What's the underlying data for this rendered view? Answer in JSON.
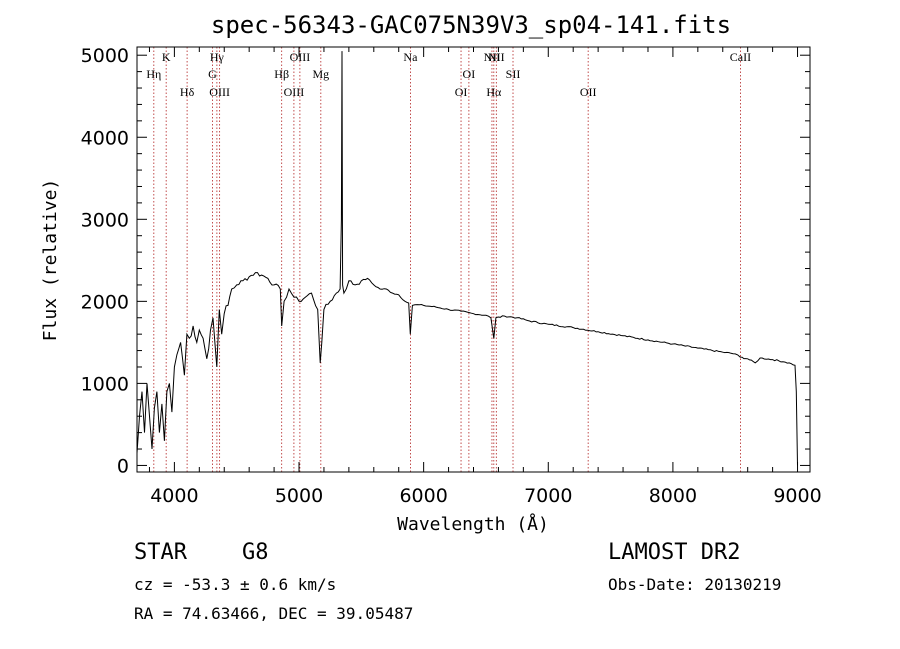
{
  "chart_data": {
    "type": "line",
    "title": "spec-56343-GAC075N39V3_sp04-141.fits",
    "xlabel": "Wavelength (Å)",
    "ylabel": "Flux (relative)",
    "xlim": [
      3700,
      9100
    ],
    "ylim": [
      -80,
      5100
    ],
    "xticks": [
      4000,
      5000,
      6000,
      7000,
      8000,
      9000
    ],
    "yticks": [
      0,
      1000,
      2000,
      3000,
      4000,
      5000
    ],
    "grid": false,
    "series": [
      {
        "x": [
          3700,
          3720,
          3740,
          3760,
          3780,
          3800,
          3820,
          3840,
          3860,
          3880,
          3900,
          3920,
          3940,
          3960,
          3980,
          4000,
          4020,
          4050,
          4080,
          4100,
          4120,
          4150,
          4180,
          4200,
          4230,
          4260,
          4290,
          4310,
          4330,
          4340,
          4360,
          4380,
          4400,
          4430,
          4460,
          4500,
          4550,
          4600,
          4650,
          4700,
          4750,
          4800,
          4850,
          4861,
          4880,
          4920,
          4960,
          5000,
          5050,
          5100,
          5150,
          5170,
          5183,
          5200,
          5250,
          5300,
          5330,
          5340,
          5345,
          5350,
          5360,
          5400,
          5450,
          5500,
          5550,
          5600,
          5650,
          5700,
          5750,
          5800,
          5850,
          5880,
          5893,
          5910,
          5950,
          6000,
          6100,
          6200,
          6300,
          6400,
          6500,
          6540,
          6563,
          6580,
          6650,
          6750,
          6850,
          7000,
          7200,
          7400,
          7600,
          7800,
          8000,
          8200,
          8400,
          8500,
          8540,
          8600,
          8660,
          8700,
          8800,
          8900,
          8950,
          8980,
          8990,
          9000
        ],
        "y": [
          150,
          600,
          900,
          400,
          1000,
          600,
          200,
          700,
          900,
          400,
          750,
          300,
          900,
          1000,
          650,
          1200,
          1350,
          1500,
          1100,
          1600,
          1550,
          1700,
          1500,
          1650,
          1550,
          1300,
          1650,
          1800,
          1400,
          1200,
          1900,
          1600,
          1850,
          1950,
          2150,
          2200,
          2250,
          2300,
          2350,
          2320,
          2280,
          2200,
          2150,
          1700,
          2000,
          2150,
          2050,
          2000,
          2050,
          2100,
          1900,
          1250,
          1500,
          1900,
          2000,
          2100,
          2150,
          3000,
          5050,
          2200,
          2100,
          2250,
          2200,
          2250,
          2280,
          2200,
          2150,
          2150,
          2100,
          2080,
          2000,
          1980,
          1600,
          1950,
          1960,
          1950,
          1930,
          1900,
          1880,
          1850,
          1830,
          1800,
          1550,
          1800,
          1820,
          1800,
          1760,
          1720,
          1680,
          1630,
          1580,
          1530,
          1480,
          1430,
          1380,
          1360,
          1320,
          1300,
          1250,
          1310,
          1290,
          1260,
          1240,
          1220,
          900,
          0
        ]
      }
    ],
    "lines": [
      {
        "name": "Hη",
        "wavelength": 3835,
        "row": 1
      },
      {
        "name": "K",
        "wavelength": 3934,
        "row": 0
      },
      {
        "name": "Hδ",
        "wavelength": 4102,
        "row": 2
      },
      {
        "name": "G",
        "wavelength": 4305,
        "row": 1
      },
      {
        "name": "Hγ",
        "wavelength": 4341,
        "row": 0
      },
      {
        "name": "OIII",
        "wavelength": 4363,
        "row": 2
      },
      {
        "name": "Hβ",
        "wavelength": 4861,
        "row": 1
      },
      {
        "name": "OIII",
        "wavelength": 4959,
        "row": 2
      },
      {
        "name": "OIII",
        "wavelength": 5007,
        "row": 0
      },
      {
        "name": "Mg",
        "wavelength": 5175,
        "row": 1
      },
      {
        "name": "Na",
        "wavelength": 5894,
        "row": 0
      },
      {
        "name": "OI",
        "wavelength": 6300,
        "row": 2
      },
      {
        "name": "OI",
        "wavelength": 6363,
        "row": 1
      },
      {
        "name": "NII",
        "wavelength": 6548,
        "row": 0
      },
      {
        "name": "Hα",
        "wavelength": 6563,
        "row": 2
      },
      {
        "name": "NII",
        "wavelength": 6583,
        "row": 0
      },
      {
        "name": "SII",
        "wavelength": 6717,
        "row": 1
      },
      {
        "name": "OII",
        "wavelength": 7320,
        "row": 2
      },
      {
        "name": "CaII",
        "wavelength": 8542,
        "row": 0
      }
    ]
  },
  "info": {
    "class": "STAR",
    "subclass": "G8",
    "survey": "LAMOST DR2",
    "cz": "cz = -53.3 ± 0.6 km/s",
    "obs_date": "Obs-Date: 20130219",
    "coords": "RA =  74.63466, DEC =  39.05487"
  }
}
